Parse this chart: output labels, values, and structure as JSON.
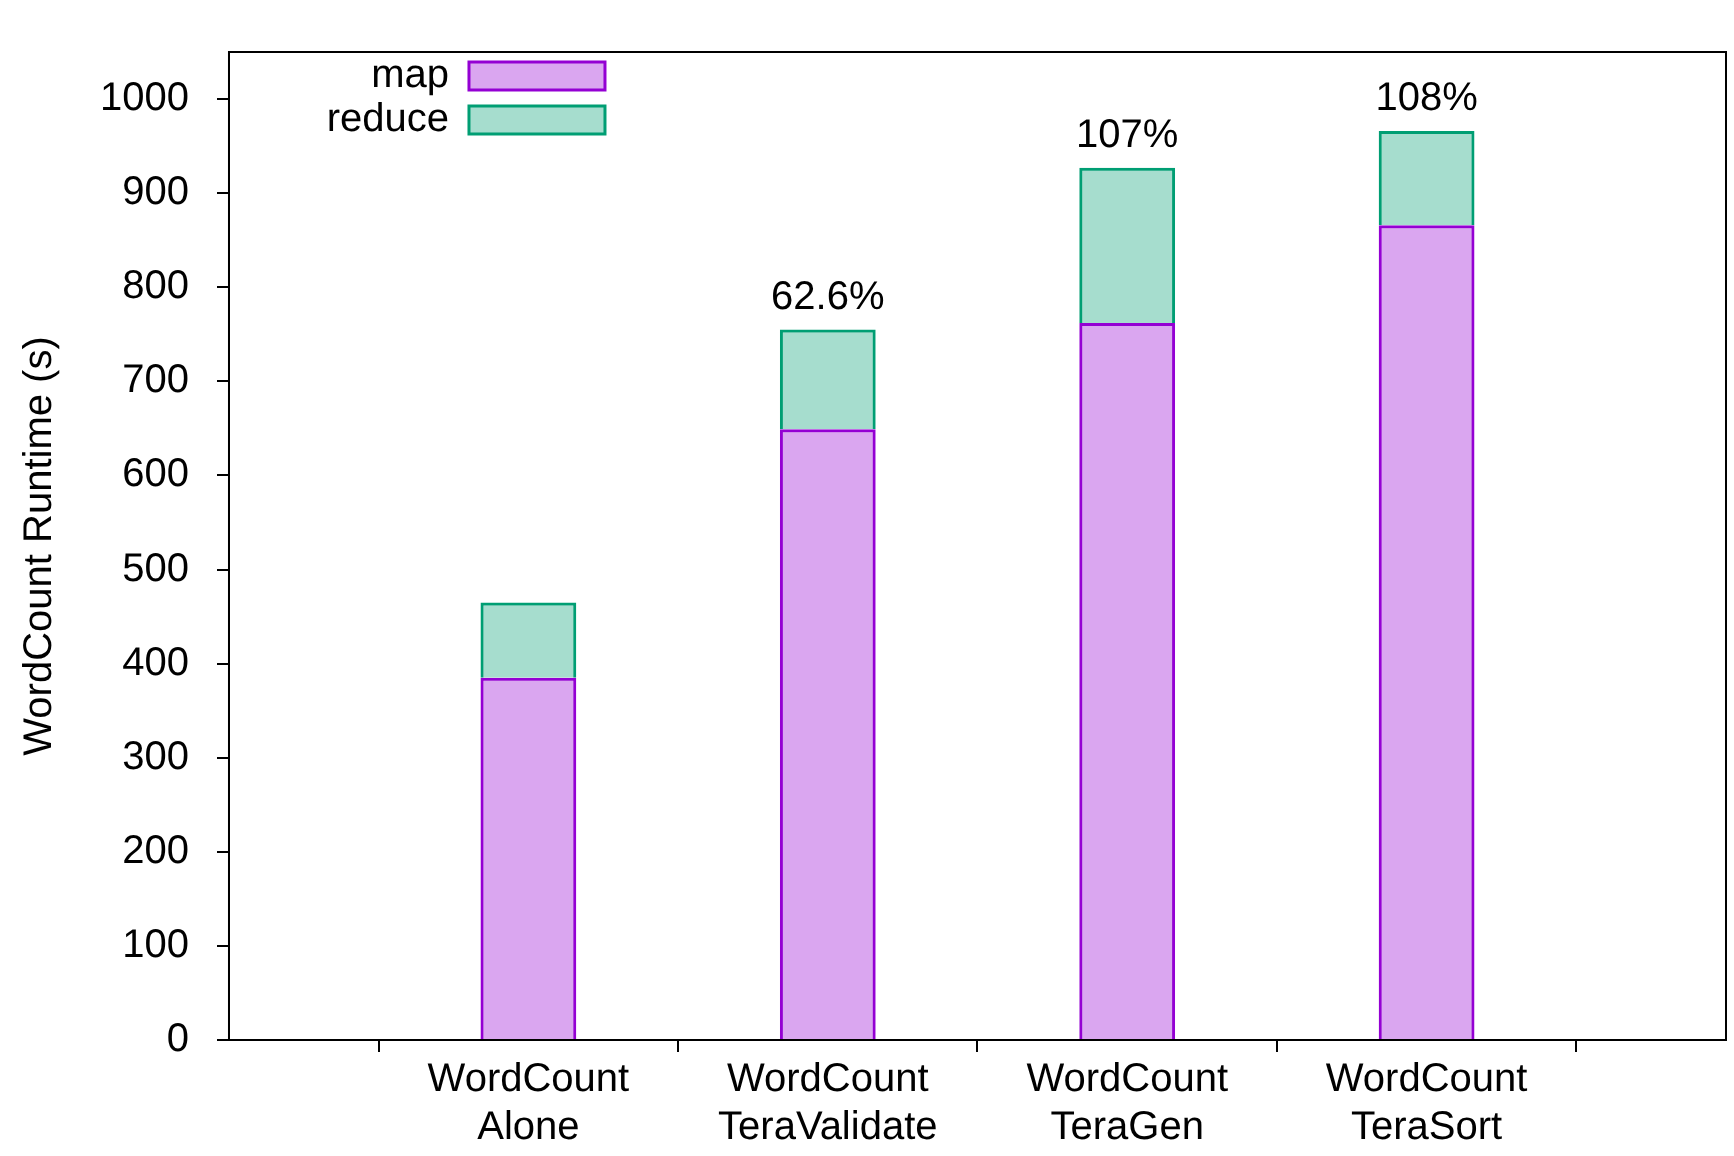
{
  "chart_data": {
    "type": "bar",
    "stacked": true,
    "ylabel": "WordCount Runtime (s)",
    "categories": [
      "WordCount\nAlone",
      "WordCount\nTeraValidate",
      "WordCount\nTeraGen",
      "WordCount\nTeraSort"
    ],
    "series": [
      {
        "name": "map",
        "color": "#9400d3",
        "values": [
          385,
          649,
          762,
          866
        ]
      },
      {
        "name": "reduce",
        "color": "#009e73",
        "values": [
          80,
          106,
          165,
          100
        ]
      }
    ],
    "ylim": [
      0,
      1050
    ],
    "yticks": [
      0,
      100,
      200,
      300,
      400,
      500,
      600,
      700,
      800,
      900,
      1000
    ],
    "annotations": [
      {
        "text": "62.6%",
        "x": "WordCount\nTeraValidate",
        "y": 755
      },
      {
        "text": "107%",
        "x": "WordCount\nTeraGen",
        "y": 927
      },
      {
        "text": "108%",
        "x": "WordCount\nTeraSort",
        "y": 966
      }
    ],
    "legend": "top left",
    "grid": false
  }
}
